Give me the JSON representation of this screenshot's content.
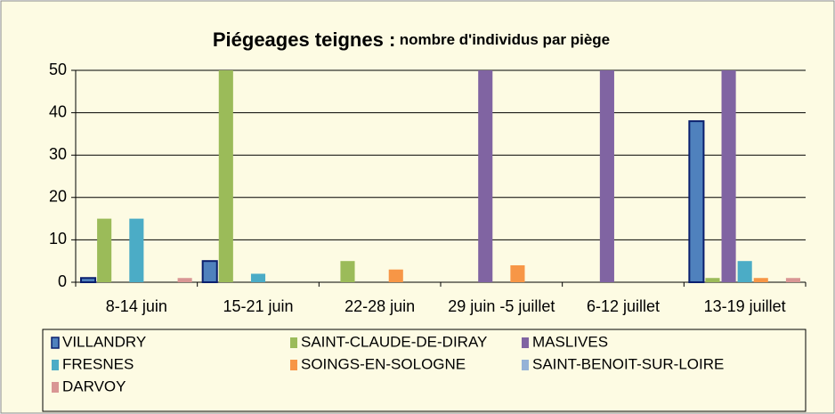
{
  "chart_data": {
    "type": "bar",
    "title": "Piégeages teignes :",
    "subtitle": "nombre d'individus par piège",
    "categories": [
      "8-14 juin",
      "15-21 juin",
      "22-28 juin",
      "29 juin -5 juillet",
      "6-12 juillet",
      "13-19 juillet"
    ],
    "series": [
      {
        "name": "VILLANDRY",
        "color": "#4f81bd",
        "values": [
          1,
          5,
          0,
          0,
          0,
          38
        ]
      },
      {
        "name": "SAINT-CLAUDE-DE-DIRAY",
        "color": "#9bbb59",
        "values": [
          15,
          50,
          5,
          0,
          0,
          1
        ]
      },
      {
        "name": "MASLIVES",
        "color": "#8064a2",
        "values": [
          0,
          0,
          0,
          50,
          50,
          50
        ]
      },
      {
        "name": "FRESNES",
        "color": "#4bacc6",
        "values": [
          15,
          2,
          0,
          0,
          0,
          5
        ]
      },
      {
        "name": "SOINGS-EN-SOLOGNE",
        "color": "#f79646",
        "values": [
          0,
          0,
          3,
          4,
          0,
          1
        ]
      },
      {
        "name": "SAINT-BENOIT-SUR-LOIRE",
        "color": "#95b3d7",
        "values": [
          0,
          0,
          0,
          0,
          0,
          0
        ]
      },
      {
        "name": "DARVOY",
        "color": "#d99694",
        "values": [
          1,
          0,
          0,
          0,
          0,
          1
        ]
      }
    ],
    "ylim": [
      0,
      50
    ],
    "yticks": [
      0,
      10,
      20,
      30,
      40,
      50
    ],
    "grid": true,
    "legend": "bottom"
  }
}
